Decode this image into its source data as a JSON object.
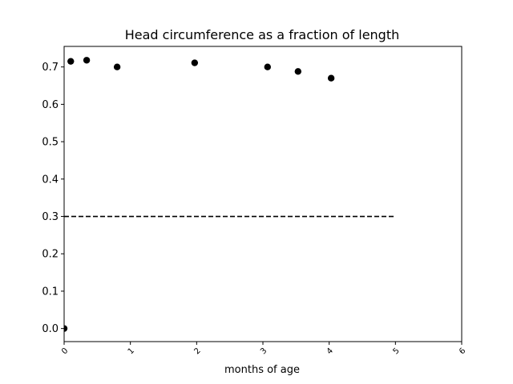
{
  "chart_data": {
    "type": "scatter",
    "title": "Head circumference as a fraction of length",
    "xlabel": "months of age",
    "ylabel": "",
    "xlim": [
      0,
      6
    ],
    "ylim": [
      -0.035,
      0.755
    ],
    "grid": false,
    "x_ticks": [
      "0",
      "1",
      "2",
      "3",
      "4",
      "5",
      "6"
    ],
    "y_ticks": [
      "0.0",
      "0.1",
      "0.2",
      "0.3",
      "0.4",
      "0.5",
      "0.6",
      "0.7"
    ],
    "series": [
      {
        "points": [
          {
            "x": 0.0,
            "y": 0.0
          },
          {
            "x": 0.1,
            "y": 0.715
          },
          {
            "x": 0.34,
            "y": 0.718
          },
          {
            "x": 0.8,
            "y": 0.7
          },
          {
            "x": 1.97,
            "y": 0.711
          },
          {
            "x": 3.07,
            "y": 0.7
          },
          {
            "x": 3.53,
            "y": 0.688
          },
          {
            "x": 4.03,
            "y": 0.67
          }
        ],
        "color": "#000000"
      }
    ],
    "reference_line": {
      "y": 0.3,
      "x_from": 0,
      "x_to": 5,
      "style": "dashed",
      "color": "#000000"
    }
  }
}
